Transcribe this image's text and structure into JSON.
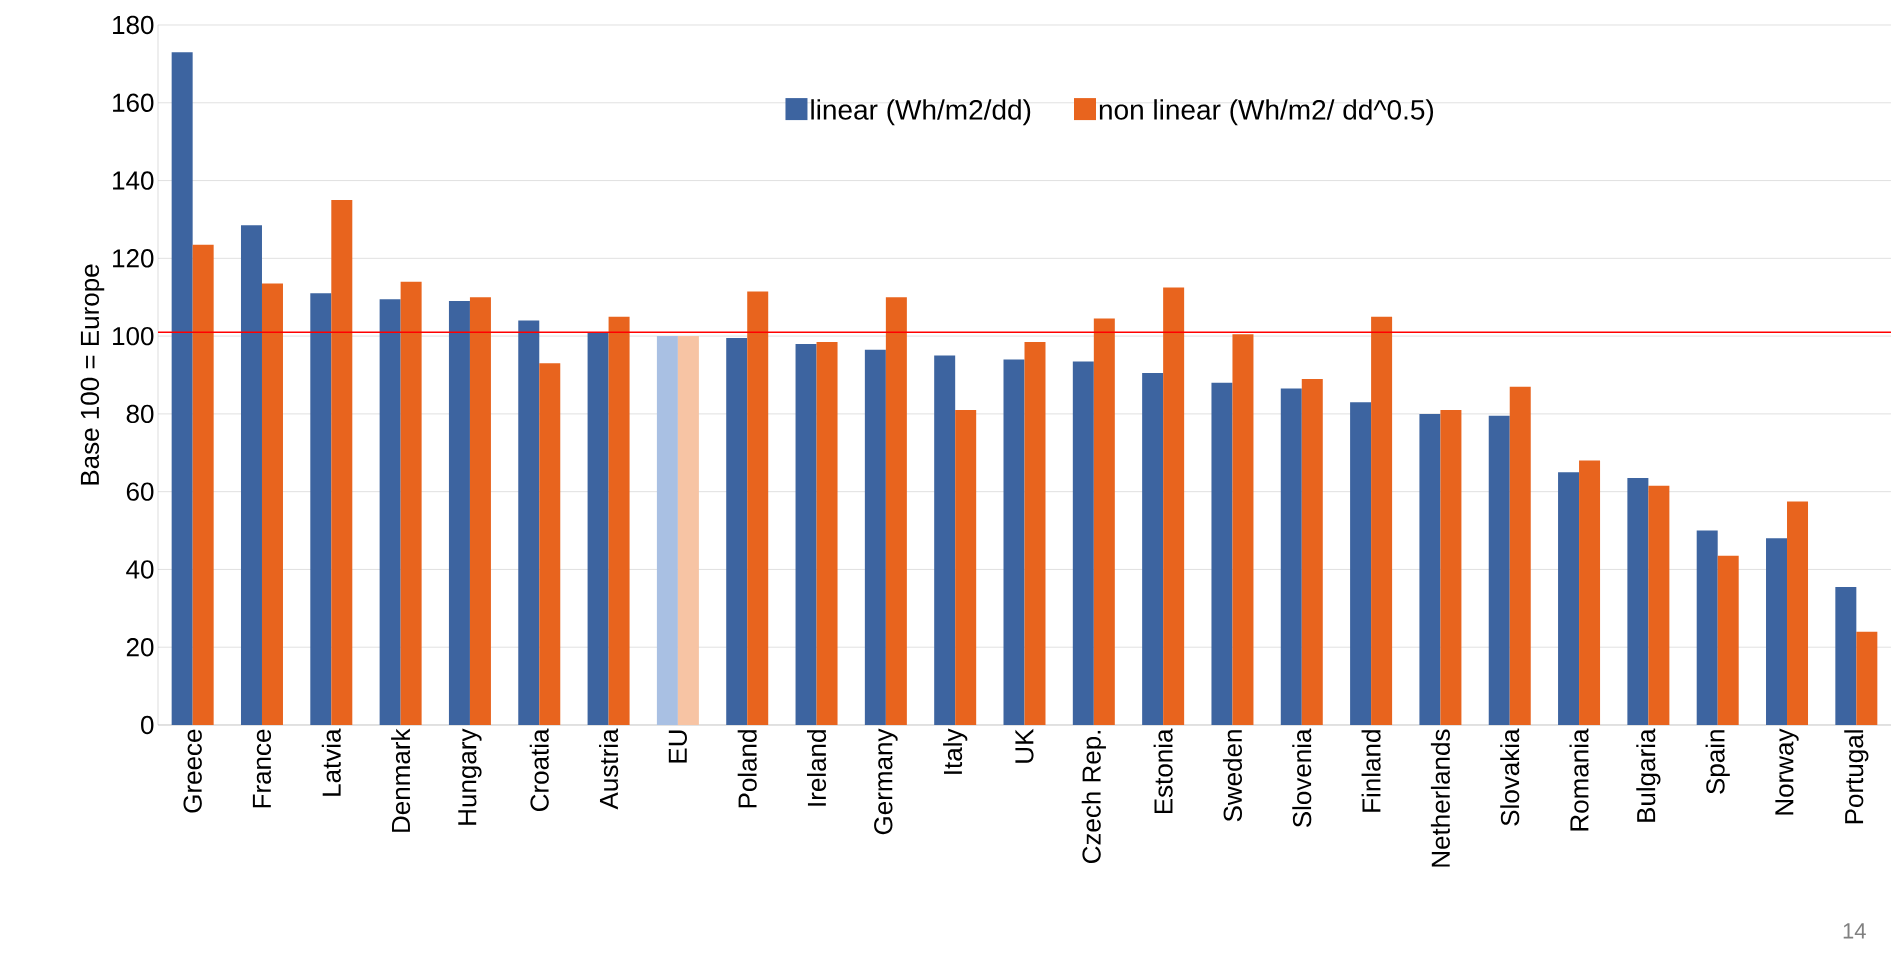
{
  "chart_data": {
    "type": "bar",
    "ylabel": "Base 100 = Europe",
    "categories": [
      "Greece",
      "France",
      "Latvia",
      "Denmark",
      "Hungary",
      "Croatia",
      "Austria",
      "EU",
      "Poland",
      "Ireland",
      "Germany",
      "Italy",
      "UK",
      "Czech Rep.",
      "Estonia",
      "Sweden",
      "Slovenia",
      "Finland",
      "Netherlands",
      "Slovakia",
      "Romania",
      "Bulgaria",
      "Spain",
      "Norway",
      "Portugal"
    ],
    "series": [
      {
        "name": "linear (Wh/m2/dd)",
        "color": "#3d64a0",
        "colors": [
          "#3d64a0",
          "#3d64a0",
          "#3d64a0",
          "#3d64a0",
          "#3d64a0",
          "#3d64a0",
          "#3d64a0",
          "#a9c0e3",
          "#3d64a0",
          "#3d64a0",
          "#3d64a0",
          "#3d64a0",
          "#3d64a0",
          "#3d64a0",
          "#3d64a0",
          "#3d64a0",
          "#3d64a0",
          "#3d64a0",
          "#3d64a0",
          "#3d64a0",
          "#3d64a0",
          "#3d64a0",
          "#3d64a0",
          "#3d64a0",
          "#3d64a0"
        ],
        "values": [
          173,
          128.5,
          111,
          109.5,
          109,
          104,
          101,
          100,
          99.5,
          98,
          96.5,
          95,
          94,
          93.5,
          90.5,
          88,
          86.5,
          83,
          80,
          79.5,
          65,
          63.5,
          50,
          48,
          35.5
        ]
      },
      {
        "name": "non linear (Wh/m2/ dd^0.5)",
        "color": "#e8641e",
        "colors": [
          "#e8641e",
          "#e8641e",
          "#e8641e",
          "#e8641e",
          "#e8641e",
          "#e8641e",
          "#e8641e",
          "#f7c4a4",
          "#e8641e",
          "#e8641e",
          "#e8641e",
          "#e8641e",
          "#e8641e",
          "#e8641e",
          "#e8641e",
          "#e8641e",
          "#e8641e",
          "#e8641e",
          "#e8641e",
          "#e8641e",
          "#e8641e",
          "#e8641e",
          "#e8641e",
          "#e8641e",
          "#e8641e"
        ],
        "values": [
          123.5,
          113.5,
          135,
          114,
          110,
          93,
          105,
          100,
          111.5,
          98.5,
          110,
          81,
          98.5,
          104.5,
          112.5,
          100.5,
          89,
          105,
          81,
          87,
          68,
          61.5,
          43.5,
          57.5,
          24
        ]
      }
    ],
    "ylim": [
      0,
      180
    ],
    "yticks": [
      0,
      20,
      40,
      60,
      80,
      100,
      120,
      140,
      160,
      180
    ],
    "grid": "y",
    "legend": "top",
    "ref_lines": [
      {
        "axis": "y",
        "value": 101,
        "color": "#ff0000"
      }
    ],
    "annotations": [
      "14"
    ]
  }
}
